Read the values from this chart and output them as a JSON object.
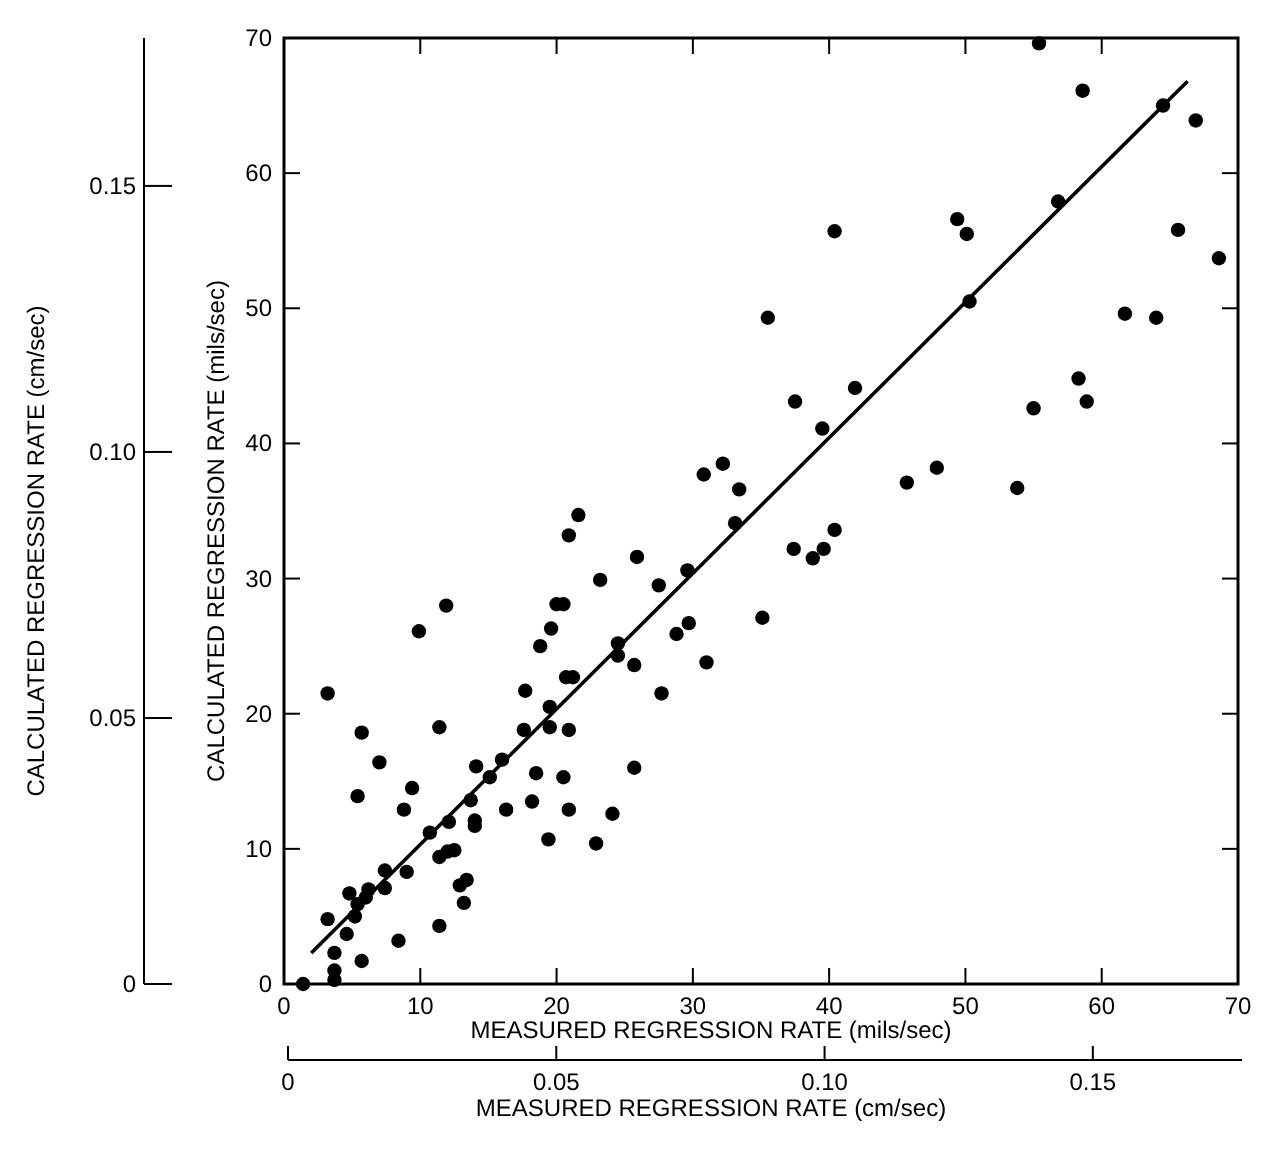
{
  "chart_data": {
    "type": "scatter",
    "xlabel": "MEASURED REGRESSION RATE (mils/sec)",
    "ylabel": "CALCULATED REGRESSION RATE (mils/sec)",
    "x2label": "MEASURED REGRESSION RATE (cm/sec)",
    "y2label": "CALCULATED REGRESSION RATE (cm/sec)",
    "xlim": [
      0,
      70
    ],
    "ylim": [
      0,
      70
    ],
    "xticks": [
      0,
      10,
      20,
      30,
      40,
      50,
      60,
      70
    ],
    "yticks": [
      0,
      10,
      20,
      30,
      40,
      50,
      60,
      70
    ],
    "x2lim": [
      0,
      0.1778
    ],
    "x2ticks": [
      0,
      0.05,
      {
        "value": 0.1,
        "label": "0.10"
      },
      0.15
    ],
    "y2lim": [
      0,
      0.1778
    ],
    "y2ticks": [
      0,
      0.05,
      {
        "value": 0.1,
        "label": "0.10"
      },
      0.15
    ],
    "series": [
      {
        "marker": "circle",
        "color": "#000000",
        "x": [
          1.4,
          3.7,
          3.7,
          3.7,
          5.7,
          8.4,
          11.4,
          3.2,
          4.6,
          4.8,
          5.4,
          5.2,
          6.0,
          6.2,
          7.4,
          7.4,
          9.0,
          10.7,
          11.4,
          12.0,
          12.5,
          12.1,
          12.9,
          13.2,
          13.4,
          14.0,
          14.0,
          13.7,
          14.1,
          15.1,
          16.0,
          16.3,
          17.6,
          17.7,
          18.2,
          18.5,
          18.8,
          19.4,
          19.5,
          19.6,
          19.5,
          20.5,
          20.9,
          20.9,
          20.7,
          21.2,
          22.9,
          20.0,
          20.5,
          3.2,
          5.7,
          7.0,
          5.4,
          9.4,
          8.8,
          9.9,
          11.9,
          11.4,
          21.6,
          20.9,
          23.2,
          24.1,
          25.7,
          40.4,
          35.5,
          41.9,
          37.5,
          39.5,
          30.8,
          32.2,
          33.4,
          33.1,
          45.7,
          25.9,
          27.5,
          29.6,
          37.4,
          39.6,
          38.8,
          40.4,
          29.7,
          28.8,
          35.1,
          24.5,
          24.5,
          25.7,
          31.0,
          27.7,
          55.4,
          58.6,
          64.5,
          66.9,
          49.4,
          50.1,
          56.8,
          65.6,
          68.6,
          50.3,
          61.7,
          64.0,
          58.3,
          58.9,
          55.0,
          47.9,
          53.8
        ],
        "values": [
          0,
          2.3,
          1.0,
          0.3,
          1.7,
          3.2,
          4.3,
          4.8,
          3.7,
          6.7,
          5.9,
          5.0,
          6.4,
          7.0,
          8.4,
          7.1,
          8.3,
          11.2,
          9.4,
          9.8,
          9.9,
          12.0,
          7.3,
          6.0,
          7.7,
          12.1,
          11.7,
          13.6,
          16.1,
          15.3,
          16.6,
          12.9,
          18.8,
          21.7,
          13.5,
          15.6,
          25.0,
          10.7,
          20.5,
          26.3,
          19.0,
          15.3,
          18.8,
          12.9,
          22.7,
          22.7,
          10.4,
          28.1,
          28.1,
          21.5,
          18.6,
          16.4,
          13.9,
          14.5,
          12.9,
          26.1,
          28.0,
          19.0,
          34.7,
          33.2,
          29.9,
          12.6,
          16.0,
          55.7,
          49.3,
          44.1,
          43.1,
          41.1,
          37.7,
          38.5,
          36.6,
          34.1,
          37.1,
          31.6,
          29.5,
          30.6,
          32.2,
          32.2,
          31.5,
          33.6,
          26.7,
          25.9,
          27.1,
          25.2,
          24.3,
          23.6,
          23.8,
          21.5,
          69.6,
          66.1,
          65.0,
          63.9,
          56.6,
          55.5,
          57.9,
          55.8,
          53.7,
          50.5,
          49.6,
          49.3,
          44.8,
          43.1,
          42.6,
          38.2,
          36.7
        ]
      },
      {
        "type": "line",
        "color": "#000000",
        "x": [
          2,
          66.3
        ],
        "values": [
          2.3,
          66.8
        ]
      }
    ]
  }
}
